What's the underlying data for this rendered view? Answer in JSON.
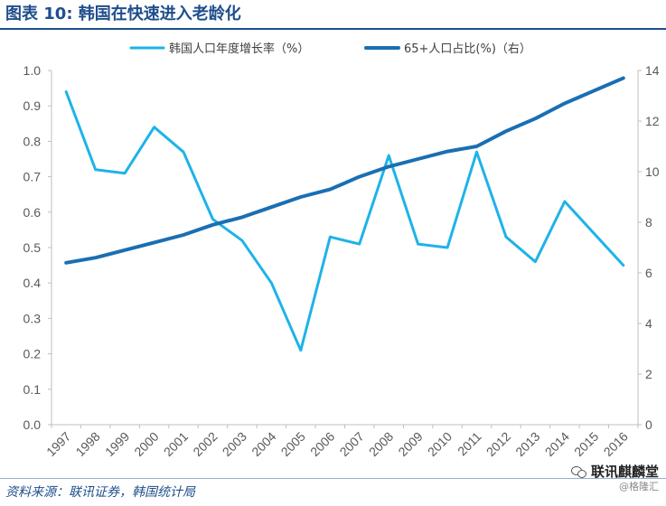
{
  "header": {
    "title": "图表 10:  韩国在快速进入老龄化"
  },
  "footer": {
    "source": "资料来源：联讯证券，韩国统计局",
    "watermark_name": "联讯麒麟堂",
    "watermark_sub": "@格隆汇",
    "watermark_icon": "wechat-icon"
  },
  "chart_data": {
    "type": "line",
    "categories": [
      "1997",
      "1998",
      "1999",
      "2000",
      "2001",
      "2002",
      "2003",
      "2004",
      "2005",
      "2006",
      "2007",
      "2008",
      "2009",
      "2010",
      "2011",
      "2012",
      "2013",
      "2014",
      "2015",
      "2016"
    ],
    "series": [
      {
        "name": "韩国人口年度增长率（%）",
        "axis": "left",
        "color": "#1eb3e8",
        "values": [
          0.94,
          0.72,
          0.71,
          0.84,
          0.77,
          0.58,
          0.52,
          0.4,
          0.21,
          0.53,
          0.51,
          0.76,
          0.51,
          0.5,
          0.77,
          0.53,
          0.46,
          0.63,
          0.54,
          0.45
        ]
      },
      {
        "name": "65+人口占比(%)（右）",
        "axis": "right",
        "color": "#1a6fb3",
        "values": [
          6.4,
          6.6,
          6.9,
          7.2,
          7.5,
          7.9,
          8.2,
          8.6,
          9.0,
          9.3,
          9.8,
          10.2,
          10.5,
          10.8,
          11.0,
          11.6,
          12.1,
          12.7,
          13.2,
          13.7
        ]
      }
    ],
    "y_left": {
      "min": 0,
      "max": 1.0,
      "ticks": [
        "0.0",
        "0.1",
        "0.2",
        "0.3",
        "0.4",
        "0.5",
        "0.6",
        "0.7",
        "0.8",
        "0.9",
        "1.0"
      ]
    },
    "y_right": {
      "min": 0,
      "max": 14,
      "ticks": [
        "0",
        "2",
        "4",
        "6",
        "8",
        "10",
        "12",
        "14"
      ]
    },
    "grid": false,
    "legend_position": "top-center"
  }
}
